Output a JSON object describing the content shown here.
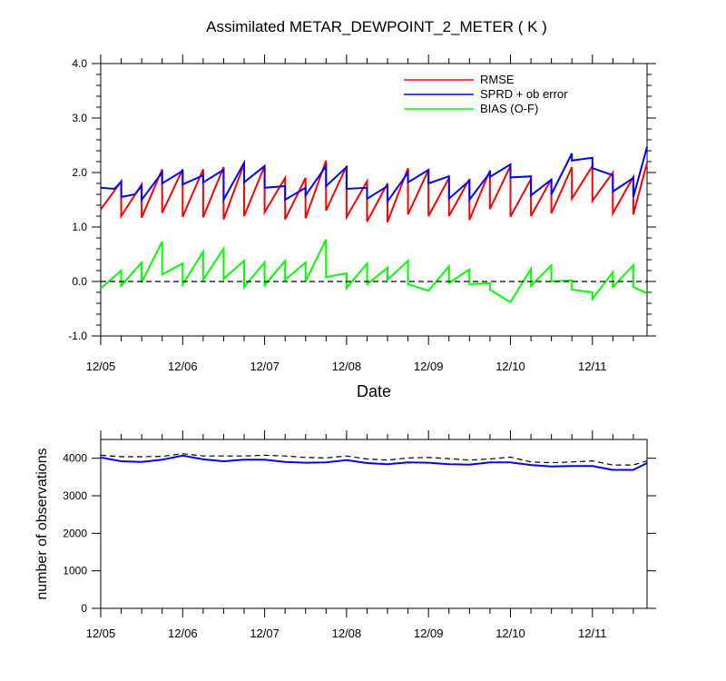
{
  "chart_data": [
    {
      "type": "line",
      "title": "Assimilated METAR_DEWPOINT_2_METER ( K )",
      "xlabel": "Date",
      "ylabel": "",
      "xlim": [
        0,
        6.667
      ],
      "ylim": [
        -1.0,
        4.0
      ],
      "ytick_labels": [
        "-1.0",
        "0.0",
        "1.0",
        "2.0",
        "3.0",
        "4.0"
      ],
      "ytick_values": [
        -1.0,
        0.0,
        1.0,
        2.0,
        3.0,
        4.0
      ],
      "xtick_labels": [
        "12/05",
        "12/06",
        "12/07",
        "12/08",
        "12/09",
        "12/10",
        "12/11"
      ],
      "xtick_values": [
        0,
        1,
        2,
        3,
        4,
        5,
        6
      ],
      "legend": {
        "placement": "top-right",
        "entries": [
          "RMSE",
          "SPRD + ob error",
          "BIAS (O-F)"
        ]
      },
      "series": [
        {
          "name": "RMSE",
          "color": "#ff0000",
          "points": [
            [
              0,
              1.32
            ],
            [
              0.25,
              1.84
            ],
            [
              0.25,
              1.2
            ],
            [
              0.5,
              1.78
            ],
            [
              0.5,
              1.17
            ],
            [
              0.75,
              2.06
            ],
            [
              0.75,
              1.26
            ],
            [
              1.0,
              2.06
            ],
            [
              1.0,
              1.19
            ],
            [
              1.25,
              2.06
            ],
            [
              1.25,
              1.18
            ],
            [
              1.5,
              2.1
            ],
            [
              1.5,
              1.14
            ],
            [
              1.75,
              2.16
            ],
            [
              1.75,
              1.2
            ],
            [
              2.0,
              2.12
            ],
            [
              2.0,
              1.27
            ],
            [
              2.25,
              1.9
            ],
            [
              2.25,
              1.14
            ],
            [
              2.5,
              1.9
            ],
            [
              2.5,
              1.16
            ],
            [
              2.75,
              2.22
            ],
            [
              2.75,
              1.3
            ],
            [
              3.0,
              2.12
            ],
            [
              3.0,
              1.18
            ],
            [
              3.25,
              1.84
            ],
            [
              3.25,
              1.1
            ],
            [
              3.5,
              1.8
            ],
            [
              3.5,
              1.09
            ],
            [
              3.75,
              2.08
            ],
            [
              3.75,
              1.23
            ],
            [
              4.0,
              2.05
            ],
            [
              4.0,
              1.2
            ],
            [
              4.25,
              1.9
            ],
            [
              4.25,
              1.2
            ],
            [
              4.5,
              1.88
            ],
            [
              4.5,
              1.13
            ],
            [
              4.75,
              2.04
            ],
            [
              4.75,
              1.33
            ],
            [
              5.0,
              2.12
            ],
            [
              5.0,
              1.19
            ],
            [
              5.25,
              1.88
            ],
            [
              5.25,
              1.2
            ],
            [
              5.5,
              1.88
            ],
            [
              5.5,
              1.25
            ],
            [
              5.75,
              2.1
            ],
            [
              5.75,
              1.52
            ],
            [
              6.0,
              2.12
            ],
            [
              6.0,
              1.48
            ],
            [
              6.25,
              2.0
            ],
            [
              6.25,
              1.25
            ],
            [
              6.5,
              1.92
            ],
            [
              6.5,
              1.23
            ],
            [
              6.667,
              2.18
            ]
          ]
        },
        {
          "name": "SPRD + ob error",
          "color": "#0000ff",
          "points": [
            [
              0,
              1.72
            ],
            [
              0.167,
              1.7
            ],
            [
              0.25,
              1.83
            ],
            [
              0.25,
              1.55
            ],
            [
              0.417,
              1.6
            ],
            [
              0.5,
              1.75
            ],
            [
              0.5,
              1.5
            ],
            [
              0.75,
              2.0
            ],
            [
              0.75,
              1.8
            ],
            [
              1.0,
              2.03
            ],
            [
              1.0,
              1.78
            ],
            [
              1.25,
              1.95
            ],
            [
              1.25,
              1.82
            ],
            [
              1.25,
              1.82
            ],
            [
              1.5,
              2.05
            ],
            [
              1.5,
              1.5
            ],
            [
              1.75,
              2.18
            ],
            [
              1.75,
              1.82
            ],
            [
              2.0,
              2.12
            ],
            [
              2.0,
              1.72
            ],
            [
              2.25,
              1.75
            ],
            [
              2.25,
              1.5
            ],
            [
              2.5,
              1.72
            ],
            [
              2.5,
              1.58
            ],
            [
              2.75,
              2.12
            ],
            [
              2.75,
              1.75
            ],
            [
              3.0,
              2.1
            ],
            [
              3.0,
              1.7
            ],
            [
              3.25,
              1.72
            ],
            [
              3.25,
              1.52
            ],
            [
              3.5,
              1.75
            ],
            [
              3.5,
              1.47
            ],
            [
              3.75,
              2.0
            ],
            [
              3.75,
              1.82
            ],
            [
              4.0,
              2.05
            ],
            [
              4.0,
              1.8
            ],
            [
              4.25,
              1.93
            ],
            [
              4.25,
              1.52
            ],
            [
              4.5,
              1.85
            ],
            [
              4.5,
              1.5
            ],
            [
              4.75,
              2.0
            ],
            [
              4.75,
              1.92
            ],
            [
              5.0,
              2.15
            ],
            [
              5.0,
              1.91
            ],
            [
              5.25,
              1.93
            ],
            [
              5.25,
              1.58
            ],
            [
              5.5,
              1.87
            ],
            [
              5.5,
              1.6
            ],
            [
              5.75,
              2.35
            ],
            [
              5.75,
              2.22
            ],
            [
              6.0,
              2.27
            ],
            [
              6.0,
              2.08
            ],
            [
              6.25,
              1.95
            ],
            [
              6.25,
              1.65
            ],
            [
              6.5,
              1.9
            ],
            [
              6.5,
              1.55
            ],
            [
              6.667,
              2.47
            ]
          ]
        },
        {
          "name": "BIAS (O-F)",
          "color": "#00ff00",
          "points": [
            [
              0,
              -0.13
            ],
            [
              0.25,
              0.2
            ],
            [
              0.25,
              -0.08
            ],
            [
              0.5,
              0.35
            ],
            [
              0.5,
              -0.02
            ],
            [
              0.75,
              0.73
            ],
            [
              0.75,
              0.13
            ],
            [
              1.0,
              0.33
            ],
            [
              1.0,
              -0.06
            ],
            [
              1.25,
              0.55
            ],
            [
              1.25,
              0.03
            ],
            [
              1.5,
              0.6
            ],
            [
              1.5,
              0.05
            ],
            [
              1.75,
              0.38
            ],
            [
              1.75,
              -0.1
            ],
            [
              2.0,
              0.35
            ],
            [
              2.0,
              -0.07
            ],
            [
              2.25,
              0.38
            ],
            [
              2.25,
              0.03
            ],
            [
              2.5,
              0.35
            ],
            [
              2.5,
              0.0
            ],
            [
              2.75,
              0.77
            ],
            [
              2.75,
              0.08
            ],
            [
              3.0,
              0.15
            ],
            [
              3.0,
              -0.12
            ],
            [
              3.25,
              0.33
            ],
            [
              3.25,
              -0.05
            ],
            [
              3.5,
              0.25
            ],
            [
              3.5,
              0.03
            ],
            [
              3.75,
              0.38
            ],
            [
              3.75,
              -0.05
            ],
            [
              4.0,
              -0.17
            ],
            [
              4.25,
              0.28
            ],
            [
              4.25,
              -0.03
            ],
            [
              4.5,
              0.22
            ],
            [
              4.5,
              -0.05
            ],
            [
              4.75,
              -0.03
            ],
            [
              4.75,
              -0.15
            ],
            [
              5.0,
              -0.38
            ],
            [
              5.25,
              0.23
            ],
            [
              5.25,
              -0.08
            ],
            [
              5.5,
              0.3
            ],
            [
              5.5,
              0.0
            ],
            [
              5.75,
              0.02
            ],
            [
              5.75,
              -0.15
            ],
            [
              6.0,
              -0.2
            ],
            [
              6.0,
              -0.32
            ],
            [
              6.25,
              0.17
            ],
            [
              6.25,
              -0.1
            ],
            [
              6.5,
              0.3
            ],
            [
              6.5,
              -0.1
            ],
            [
              6.667,
              -0.22
            ]
          ]
        },
        {
          "name": "zero reference",
          "color": "#000000",
          "style": "dashed",
          "points": [
            [
              0,
              0
            ],
            [
              6.667,
              0
            ]
          ]
        }
      ]
    },
    {
      "type": "line",
      "title": "",
      "xlabel": "",
      "ylabel": "number of observations",
      "xlim": [
        0,
        6.667
      ],
      "ylim": [
        0,
        4500
      ],
      "ytick_labels": [
        "0",
        "1000",
        "2000",
        "3000",
        "4000"
      ],
      "ytick_values": [
        0,
        1000,
        2000,
        3000,
        4000
      ],
      "xtick_labels": [
        "12/05",
        "12/06",
        "12/07",
        "12/08",
        "12/09",
        "12/10",
        "12/11"
      ],
      "xtick_values": [
        0,
        1,
        2,
        3,
        4,
        5,
        6
      ],
      "series": [
        {
          "name": "possible observations",
          "color": "#000000",
          "style": "dashed",
          "points": [
            [
              0,
              4080
            ],
            [
              0.25,
              4040
            ],
            [
              0.5,
              4040
            ],
            [
              0.75,
              4050
            ],
            [
              1.0,
              4120
            ],
            [
              1.25,
              4060
            ],
            [
              1.5,
              4060
            ],
            [
              1.75,
              4060
            ],
            [
              2.0,
              4080
            ],
            [
              2.25,
              4060
            ],
            [
              2.5,
              4020
            ],
            [
              2.75,
              4010
            ],
            [
              3.0,
              4060
            ],
            [
              3.25,
              3980
            ],
            [
              3.5,
              3950
            ],
            [
              3.75,
              4010
            ],
            [
              4.0,
              4020
            ],
            [
              4.25,
              3990
            ],
            [
              4.5,
              3950
            ],
            [
              4.75,
              3980
            ],
            [
              5.0,
              4030
            ],
            [
              5.25,
              3900
            ],
            [
              5.5,
              3880
            ],
            [
              5.75,
              3900
            ],
            [
              6.0,
              3930
            ],
            [
              6.25,
              3820
            ],
            [
              6.5,
              3820
            ],
            [
              6.667,
              3930
            ]
          ]
        },
        {
          "name": "assimilated observations",
          "color": "#0000ff",
          "style": "solid",
          "points": [
            [
              0,
              4020
            ],
            [
              0.25,
              3920
            ],
            [
              0.5,
              3900
            ],
            [
              0.75,
              3960
            ],
            [
              1.0,
              4070
            ],
            [
              1.25,
              3970
            ],
            [
              1.5,
              3920
            ],
            [
              1.75,
              3960
            ],
            [
              2.0,
              3960
            ],
            [
              2.25,
              3900
            ],
            [
              2.5,
              3880
            ],
            [
              2.75,
              3890
            ],
            [
              3.0,
              3950
            ],
            [
              3.25,
              3870
            ],
            [
              3.5,
              3840
            ],
            [
              3.75,
              3890
            ],
            [
              4.0,
              3880
            ],
            [
              4.25,
              3840
            ],
            [
              4.5,
              3830
            ],
            [
              4.75,
              3890
            ],
            [
              5.0,
              3890
            ],
            [
              5.25,
              3820
            ],
            [
              5.5,
              3780
            ],
            [
              5.75,
              3790
            ],
            [
              6.0,
              3790
            ],
            [
              6.25,
              3690
            ],
            [
              6.5,
              3690
            ],
            [
              6.667,
              3870
            ]
          ]
        }
      ]
    }
  ]
}
